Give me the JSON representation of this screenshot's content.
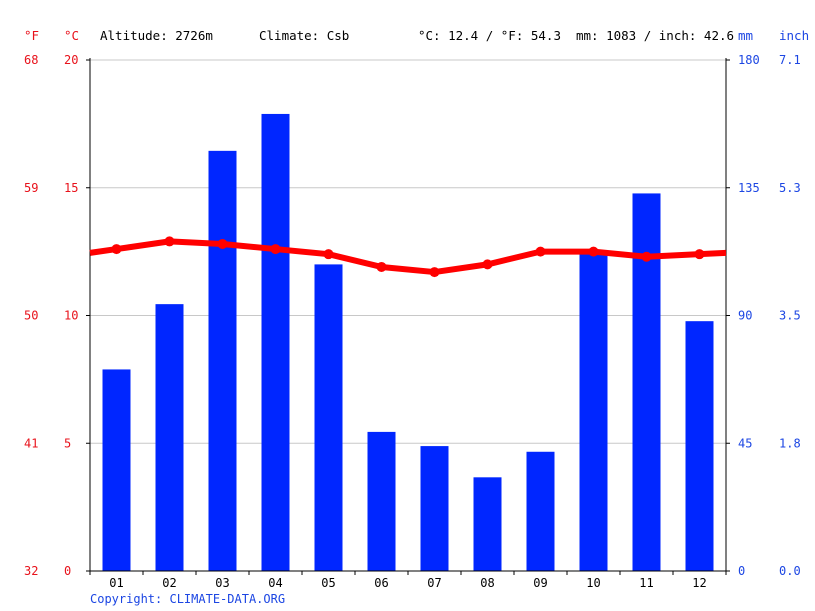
{
  "header": {
    "unit_f": "°F",
    "unit_c": "°C",
    "altitude": "Altitude: 2726m",
    "climate": "Climate: Csb",
    "temp_avg": "°C: 12.4 / °F: 54.3",
    "precip_total": "mm: 1083 / inch: 42.6",
    "unit_mm": "mm",
    "unit_inch": "inch"
  },
  "copyright": "Copyright: CLIMATE-DATA.ORG",
  "colors": {
    "temperature": "#ff0000",
    "precipitation": "#0026ff",
    "axis_red": "#e8121b",
    "axis_blue": "#1c46e3",
    "grid": "#c8c8c8"
  },
  "chart_data": {
    "type": "bar",
    "categories": [
      "01",
      "02",
      "03",
      "04",
      "05",
      "06",
      "07",
      "08",
      "09",
      "10",
      "11",
      "12"
    ],
    "series": [
      {
        "kind": "bar",
        "unit": "mm",
        "values": [
          71,
          94,
          148,
          161,
          108,
          49,
          44,
          33,
          42,
          112,
          133,
          88
        ]
      },
      {
        "kind": "line",
        "unit": "°C",
        "values": [
          12.6,
          12.9,
          12.8,
          12.6,
          12.4,
          11.9,
          11.7,
          12.0,
          12.5,
          12.5,
          12.3,
          12.4
        ]
      }
    ],
    "axes": {
      "f_ticks": [
        "68",
        "59",
        "50",
        "41",
        "32"
      ],
      "c_ticks": [
        "20",
        "15",
        "10",
        "5",
        "0"
      ],
      "mm_ticks": [
        "180",
        "135",
        "90",
        "45",
        "0"
      ],
      "inch_ticks": [
        "7.1",
        "5.3",
        "3.5",
        "1.8",
        "0.0"
      ],
      "c_range": [
        0,
        20
      ],
      "mm_range": [
        0,
        180
      ]
    },
    "grid": true
  }
}
